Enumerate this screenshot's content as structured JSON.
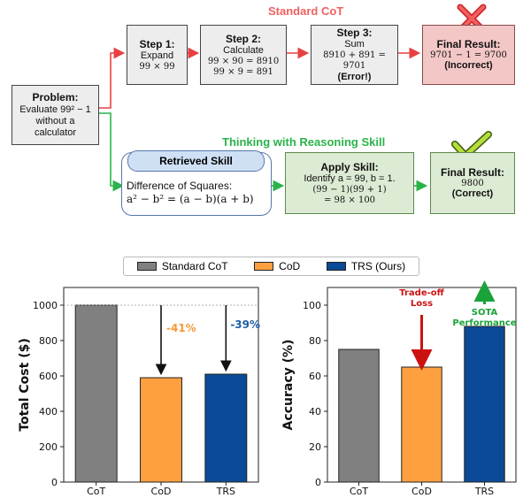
{
  "diagram": {
    "standard_cot_title": "Standard CoT",
    "thinking_title": "Thinking with Reasoning Skill",
    "problem": {
      "title": "Problem:",
      "line1": "Evaluate 99² − 1",
      "line2": "without a",
      "line3": "calculator"
    },
    "step1": {
      "title": "Step 1:",
      "line1": "Expand",
      "line2": "99 × 99"
    },
    "step2": {
      "title": "Step 2:",
      "line1": "Calculate",
      "line2": "99 × 90 = 8910",
      "line3": "99 × 9 = 891"
    },
    "step3": {
      "title": "Step 3:",
      "line1": "Sum",
      "line2": "8910 + 891 = 9701",
      "line3": "(Error!)"
    },
    "final_wrong": {
      "title": "Final Result:",
      "line1": "9701 − 1 = 9700",
      "line2": "(Incorrect)"
    },
    "retrieved": {
      "title": "Retrieved Skill",
      "line1": "Difference of Squares:",
      "line2": "a² − b² = (a − b)(a + b)"
    },
    "apply": {
      "title": "Apply Skill:",
      "line1": "Identify a = 99, b = 1.",
      "line2": "(99 − 1)(99 + 1)",
      "line3": "= 98 × 100"
    },
    "final_right": {
      "title": "Final Result:",
      "line1": "9800",
      "line2": "(Correct)"
    }
  },
  "legend": [
    {
      "label": "Standard CoT",
      "color": "#808080"
    },
    {
      "label": "CoD",
      "color": "#ffa040"
    },
    {
      "label": "TRS (Ours)",
      "color": "#0b4a96"
    }
  ],
  "chart_data": [
    {
      "type": "bar",
      "categories": [
        "CoT",
        "CoD",
        "TRS"
      ],
      "values": [
        1000,
        590,
        610
      ],
      "ylabel": "Total Cost ($)",
      "ylim": [
        0,
        1100
      ],
      "yticks": [
        "0",
        "200",
        "400",
        "600",
        "800",
        "1000"
      ],
      "colors": [
        "#808080",
        "#ffa040",
        "#0b4a96"
      ],
      "annotations": [
        {
          "text": "-41%",
          "color": "#f59a3a"
        },
        {
          "text": "-39%",
          "color": "#1f5fa8"
        }
      ]
    },
    {
      "type": "bar",
      "categories": [
        "CoT",
        "CoD",
        "TRS"
      ],
      "values": [
        75,
        65,
        88
      ],
      "ylabel": "Accuracy (%)",
      "ylim": [
        0,
        110
      ],
      "yticks": [
        "0",
        "20",
        "40",
        "60",
        "80",
        "100"
      ],
      "colors": [
        "#808080",
        "#ffa040",
        "#0b4a96"
      ],
      "annotations": [
        {
          "text_line1": "Trade-off",
          "text_line2": "Loss",
          "color": "#cc1111"
        },
        {
          "text_line1": "SOTA",
          "text_line2": "Performance",
          "color": "#1aa33a"
        }
      ]
    }
  ]
}
